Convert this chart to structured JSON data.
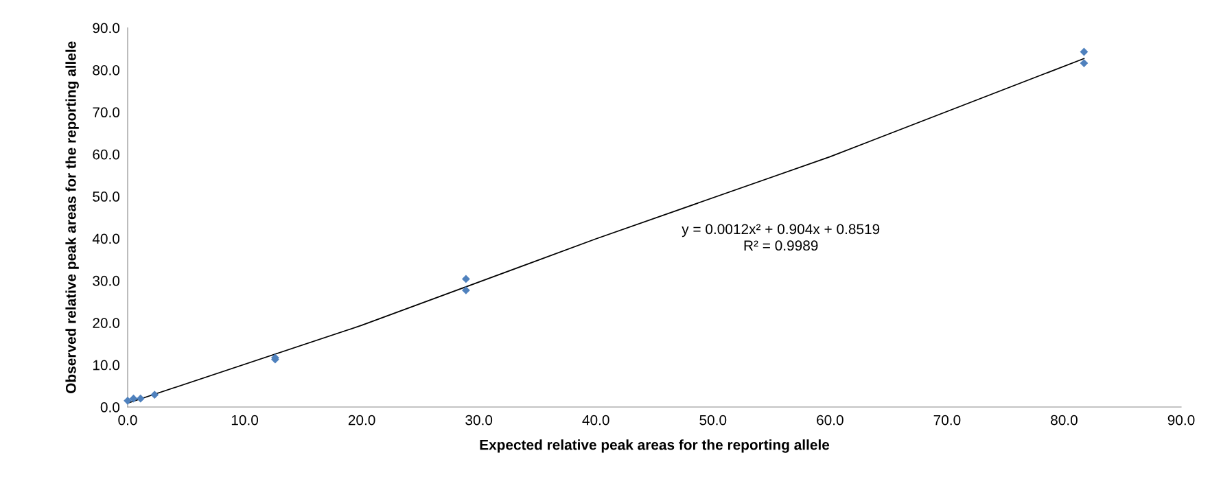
{
  "chart_data": {
    "type": "scatter",
    "xlabel": "Expected relative peak areas for the reporting allele",
    "ylabel": "Observed relative peak areas for the reporting allele",
    "series": [
      {
        "type": "scatter",
        "color": "#4f81bd",
        "marker": "diamond",
        "x": [
          0.0,
          0.5,
          1.1,
          2.3,
          12.6,
          12.6,
          28.9,
          28.9,
          81.7,
          81.7
        ],
        "values": [
          1.5,
          2.0,
          2.0,
          2.9,
          11.3,
          11.7,
          27.7,
          30.4,
          81.6,
          84.3
        ]
      },
      {
        "type": "line",
        "color": "#000000",
        "marker": "none",
        "x": [
          0,
          20,
          40,
          60,
          81.7
        ],
        "values": [
          0.9,
          19.4,
          39.9,
          59.4,
          82.7
        ]
      }
    ],
    "annotations": [
      "y = 0.0012x² + 0.904x + 0.8519\nR² = 0.9989"
    ],
    "xlim": [
      0,
      90
    ],
    "ylim": [
      0,
      90
    ],
    "xticks": [
      {
        "value": 0,
        "label": "0.0"
      },
      {
        "value": 10,
        "label": "10.0"
      },
      {
        "value": 20,
        "label": "20.0"
      },
      {
        "value": 30,
        "label": "30.0"
      },
      {
        "value": 40,
        "label": "40.0"
      },
      {
        "value": 50,
        "label": "50.0"
      },
      {
        "value": 60,
        "label": "60.0"
      },
      {
        "value": 70,
        "label": "70.0"
      },
      {
        "value": 80,
        "label": "80.0"
      },
      {
        "value": 90,
        "label": "90.0"
      }
    ],
    "yticks": [
      {
        "value": 0,
        "label": "0.0"
      },
      {
        "value": 10,
        "label": "10.0"
      },
      {
        "value": 20,
        "label": "20.0"
      },
      {
        "value": 30,
        "label": "30.0"
      },
      {
        "value": 40,
        "label": "40.0"
      },
      {
        "value": 50,
        "label": "50.0"
      },
      {
        "value": 60,
        "label": "60.0"
      },
      {
        "value": 70,
        "label": "70.0"
      },
      {
        "value": 80,
        "label": "80.0"
      },
      {
        "value": 90,
        "label": "90.0"
      }
    ],
    "grid": false,
    "legend": false
  }
}
